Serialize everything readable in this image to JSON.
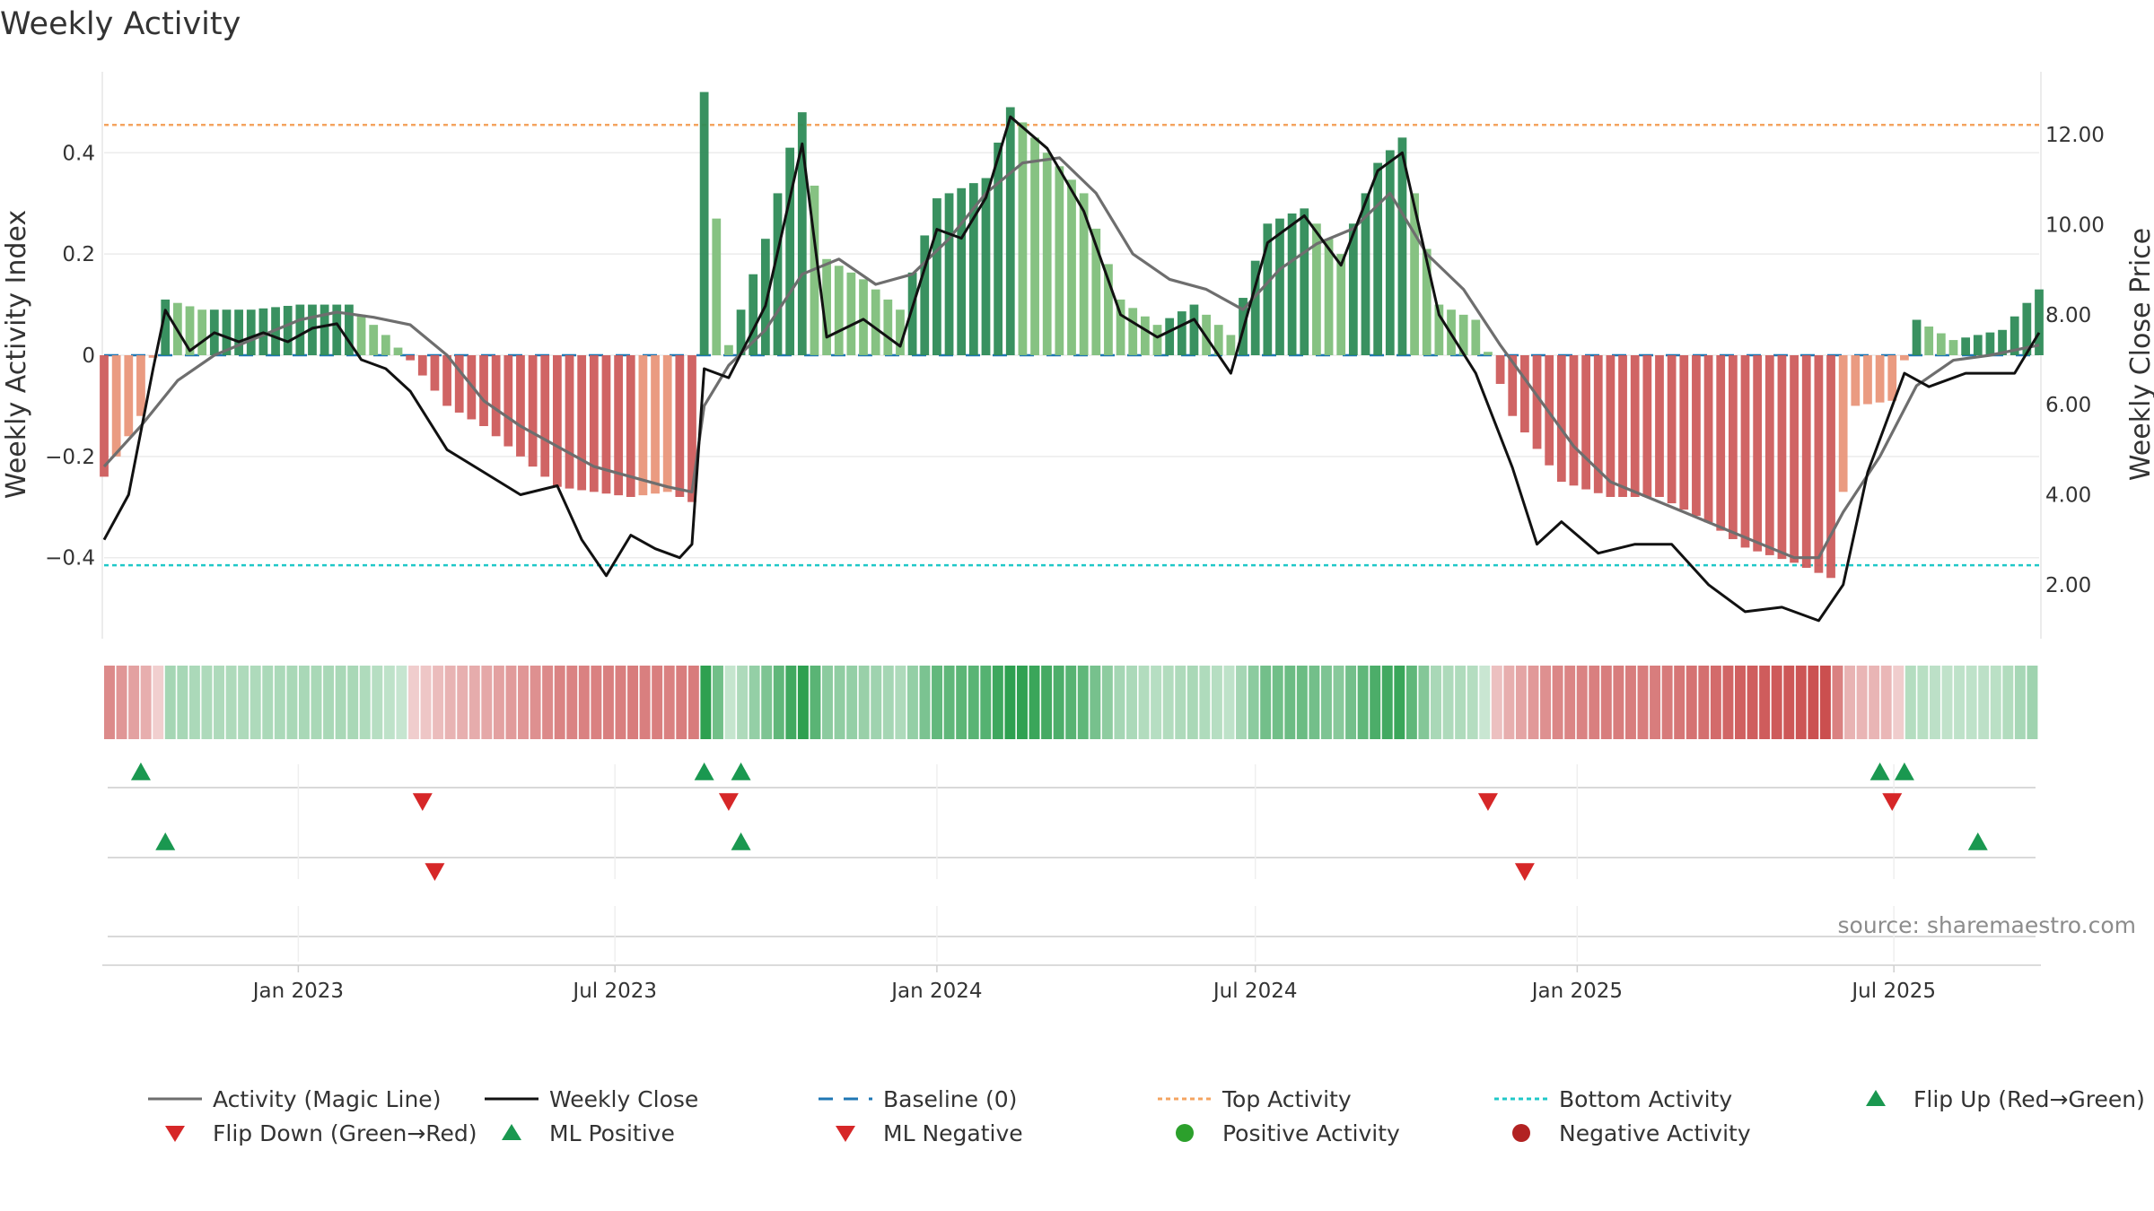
{
  "chart_data": {
    "type": "bar",
    "title": "Weekly Activity",
    "ylabel": "Weekly Activity Index",
    "y2label": "Weekly Close Price",
    "ylim": [
      -0.56,
      0.56
    ],
    "y2lim": [
      0.8,
      13.4
    ],
    "yticks": [
      0.4,
      0.2,
      0,
      -0.2,
      -0.4
    ],
    "ytick_labels": [
      "0.4",
      "0.2",
      "0",
      "−0.2",
      "−0.4"
    ],
    "y2ticks": [
      12,
      10,
      8,
      6,
      4,
      2
    ],
    "y2tick_labels": [
      "12.00",
      "10.00",
      "8.00",
      "6.00",
      "4.00",
      "2.00"
    ],
    "x_start": "2022-09-12",
    "x_end": "2025-09-22",
    "xticks": [
      "2023-01-01",
      "2023-07-01",
      "2024-01-01",
      "2024-07-01",
      "2025-01-01",
      "2025-07-01"
    ],
    "xtick_labels": [
      "Jan 2023",
      "Jul 2023",
      "Jan 2024",
      "Jul 2024",
      "Jan 2025",
      "Jul 2025"
    ],
    "top_activity": 0.455,
    "bottom_activity": -0.415,
    "source": "source: sharemaestro.com",
    "colors": {
      "positive_strong": "#2e8b57",
      "positive_light": "#7fbf7b",
      "negative_strong": "#cd5c5c",
      "negative_light": "#e9967a",
      "magic_line": "#6e6e6e",
      "close": "#111111",
      "baseline": "#1f77b4",
      "top": "#f4a460",
      "bottom": "#20c8c8",
      "flip_up": "#1a9850",
      "flip_down": "#d62728"
    },
    "series": [
      {
        "name": "Activity (Magic Line)",
        "type": "line",
        "axis": "left",
        "points": [
          [
            "2022-09-12",
            -0.22
          ],
          [
            "2022-10-03",
            -0.14
          ],
          [
            "2022-10-24",
            -0.05
          ],
          [
            "2022-11-14",
            0.0
          ],
          [
            "2022-12-05",
            0.03
          ],
          [
            "2023-01-02",
            0.07
          ],
          [
            "2023-01-23",
            0.085
          ],
          [
            "2023-02-13",
            0.075
          ],
          [
            "2023-03-06",
            0.06
          ],
          [
            "2023-03-27",
            0.0
          ],
          [
            "2023-04-17",
            -0.09
          ],
          [
            "2023-05-08",
            -0.14
          ],
          [
            "2023-05-29",
            -0.18
          ],
          [
            "2023-06-19",
            -0.22
          ],
          [
            "2023-07-10",
            -0.24
          ],
          [
            "2023-07-31",
            -0.26
          ],
          [
            "2023-08-14",
            -0.27
          ],
          [
            "2023-08-21",
            -0.1
          ],
          [
            "2023-09-04",
            -0.02
          ],
          [
            "2023-09-25",
            0.05
          ],
          [
            "2023-10-16",
            0.16
          ],
          [
            "2023-11-06",
            0.19
          ],
          [
            "2023-11-27",
            0.14
          ],
          [
            "2023-12-18",
            0.16
          ],
          [
            "2024-01-08",
            0.23
          ],
          [
            "2024-01-29",
            0.32
          ],
          [
            "2024-02-19",
            0.38
          ],
          [
            "2024-03-11",
            0.39
          ],
          [
            "2024-04-01",
            0.32
          ],
          [
            "2024-04-22",
            0.2
          ],
          [
            "2024-05-13",
            0.15
          ],
          [
            "2024-06-03",
            0.13
          ],
          [
            "2024-06-24",
            0.09
          ],
          [
            "2024-07-15",
            0.17
          ],
          [
            "2024-08-05",
            0.22
          ],
          [
            "2024-08-26",
            0.25
          ],
          [
            "2024-09-16",
            0.32
          ],
          [
            "2024-10-07",
            0.2
          ],
          [
            "2024-10-28",
            0.13
          ],
          [
            "2024-11-18",
            0.02
          ],
          [
            "2024-12-09",
            -0.08
          ],
          [
            "2024-12-30",
            -0.18
          ],
          [
            "2025-01-20",
            -0.25
          ],
          [
            "2025-02-10",
            -0.28
          ],
          [
            "2025-03-03",
            -0.31
          ],
          [
            "2025-03-24",
            -0.34
          ],
          [
            "2025-04-14",
            -0.37
          ],
          [
            "2025-05-05",
            -0.4
          ],
          [
            "2025-05-19",
            -0.4
          ],
          [
            "2025-06-02",
            -0.31
          ],
          [
            "2025-06-23",
            -0.2
          ],
          [
            "2025-07-14",
            -0.06
          ],
          [
            "2025-08-04",
            -0.01
          ],
          [
            "2025-08-25",
            0.0
          ],
          [
            "2025-09-22",
            0.02
          ]
        ]
      },
      {
        "name": "Weekly Close",
        "type": "line",
        "axis": "right",
        "points": [
          [
            "2022-09-12",
            3.0
          ],
          [
            "2022-09-26",
            4.0
          ],
          [
            "2022-10-10",
            6.8
          ],
          [
            "2022-10-17",
            8.1
          ],
          [
            "2022-10-31",
            7.2
          ],
          [
            "2022-11-14",
            7.6
          ],
          [
            "2022-11-28",
            7.4
          ],
          [
            "2022-12-12",
            7.6
          ],
          [
            "2022-12-26",
            7.4
          ],
          [
            "2023-01-09",
            7.7
          ],
          [
            "2023-01-23",
            7.8
          ],
          [
            "2023-02-06",
            7.0
          ],
          [
            "2023-02-20",
            6.8
          ],
          [
            "2023-03-06",
            6.3
          ],
          [
            "2023-03-27",
            5.0
          ],
          [
            "2023-04-17",
            4.5
          ],
          [
            "2023-05-08",
            4.0
          ],
          [
            "2023-05-29",
            4.2
          ],
          [
            "2023-06-12",
            3.0
          ],
          [
            "2023-06-26",
            2.2
          ],
          [
            "2023-07-10",
            3.1
          ],
          [
            "2023-07-24",
            2.8
          ],
          [
            "2023-08-07",
            2.6
          ],
          [
            "2023-08-14",
            2.9
          ],
          [
            "2023-08-21",
            6.8
          ],
          [
            "2023-09-04",
            6.6
          ],
          [
            "2023-09-25",
            8.2
          ],
          [
            "2023-10-16",
            11.8
          ],
          [
            "2023-10-30",
            7.5
          ],
          [
            "2023-11-20",
            7.9
          ],
          [
            "2023-12-11",
            7.3
          ],
          [
            "2024-01-01",
            9.9
          ],
          [
            "2024-01-15",
            9.7
          ],
          [
            "2024-01-29",
            10.6
          ],
          [
            "2024-02-12",
            12.4
          ],
          [
            "2024-03-04",
            11.7
          ],
          [
            "2024-03-25",
            10.3
          ],
          [
            "2024-04-15",
            8.0
          ],
          [
            "2024-05-06",
            7.5
          ],
          [
            "2024-05-27",
            7.9
          ],
          [
            "2024-06-17",
            6.7
          ],
          [
            "2024-07-08",
            9.6
          ],
          [
            "2024-07-29",
            10.2
          ],
          [
            "2024-08-19",
            9.1
          ],
          [
            "2024-09-09",
            11.2
          ],
          [
            "2024-09-23",
            11.6
          ],
          [
            "2024-10-14",
            8.0
          ],
          [
            "2024-11-04",
            6.7
          ],
          [
            "2024-11-25",
            4.6
          ],
          [
            "2024-12-09",
            2.9
          ],
          [
            "2024-12-23",
            3.4
          ],
          [
            "2025-01-13",
            2.7
          ],
          [
            "2025-02-03",
            2.9
          ],
          [
            "2025-02-24",
            2.9
          ],
          [
            "2025-03-17",
            2.0
          ],
          [
            "2025-04-07",
            1.4
          ],
          [
            "2025-04-28",
            1.5
          ],
          [
            "2025-05-19",
            1.2
          ],
          [
            "2025-06-02",
            2.0
          ],
          [
            "2025-06-16",
            4.5
          ],
          [
            "2025-07-07",
            6.7
          ],
          [
            "2025-07-21",
            6.4
          ],
          [
            "2025-08-11",
            6.7
          ],
          [
            "2025-09-08",
            6.7
          ],
          [
            "2025-09-22",
            7.6
          ]
        ]
      },
      {
        "name": "Weekly Activity",
        "type": "bar",
        "axis": "left",
        "points": [
          [
            "2022-09-12",
            -0.24
          ],
          [
            "2022-10-03",
            -0.12
          ],
          [
            "2022-10-17",
            0.11
          ],
          [
            "2022-11-07",
            0.09
          ],
          [
            "2022-12-05",
            0.09
          ],
          [
            "2023-01-02",
            0.1
          ],
          [
            "2023-01-30",
            0.1
          ],
          [
            "2023-02-20",
            0.04
          ],
          [
            "2023-03-06",
            -0.01
          ],
          [
            "2023-03-27",
            -0.1
          ],
          [
            "2023-04-17",
            -0.14
          ],
          [
            "2023-05-08",
            -0.2
          ],
          [
            "2023-05-29",
            -0.26
          ],
          [
            "2023-06-19",
            -0.27
          ],
          [
            "2023-07-10",
            -0.28
          ],
          [
            "2023-07-31",
            -0.27
          ],
          [
            "2023-08-14",
            -0.29
          ],
          [
            "2023-08-21",
            0.52
          ],
          [
            "2023-09-04",
            0.02
          ],
          [
            "2023-09-25",
            0.23
          ],
          [
            "2023-10-09",
            0.41
          ],
          [
            "2023-10-16",
            0.48
          ],
          [
            "2023-10-30",
            0.19
          ],
          [
            "2023-11-20",
            0.15
          ],
          [
            "2023-12-11",
            0.09
          ],
          [
            "2024-01-01",
            0.31
          ],
          [
            "2024-01-29",
            0.35
          ],
          [
            "2024-02-12",
            0.49
          ],
          [
            "2024-03-04",
            0.4
          ],
          [
            "2024-03-25",
            0.32
          ],
          [
            "2024-04-15",
            0.11
          ],
          [
            "2024-05-06",
            0.06
          ],
          [
            "2024-05-27",
            0.1
          ],
          [
            "2024-06-17",
            0.04
          ],
          [
            "2024-07-08",
            0.26
          ],
          [
            "2024-07-29",
            0.29
          ],
          [
            "2024-08-19",
            0.2
          ],
          [
            "2024-09-09",
            0.38
          ],
          [
            "2024-09-23",
            0.43
          ],
          [
            "2024-10-14",
            0.1
          ],
          [
            "2024-11-04",
            0.07
          ],
          [
            "2024-11-25",
            -0.12
          ],
          [
            "2024-12-23",
            -0.25
          ],
          [
            "2025-01-20",
            -0.28
          ],
          [
            "2025-02-17",
            -0.28
          ],
          [
            "2025-03-17",
            -0.33
          ],
          [
            "2025-04-07",
            -0.38
          ],
          [
            "2025-05-05",
            -0.41
          ],
          [
            "2025-05-26",
            -0.44
          ],
          [
            "2025-06-09",
            -0.1
          ],
          [
            "2025-06-30",
            -0.09
          ],
          [
            "2025-07-14",
            0.07
          ],
          [
            "2025-08-04",
            0.03
          ],
          [
            "2025-09-01",
            0.05
          ],
          [
            "2025-09-22",
            0.13
          ]
        ]
      }
    ],
    "flip_markers": {
      "flip_up": [
        "2022-10-03",
        "2023-08-21",
        "2023-09-11",
        "2025-06-23",
        "2025-07-07"
      ],
      "flip_down": [
        "2023-03-13",
        "2023-09-04",
        "2024-11-11",
        "2025-06-30"
      ]
    },
    "ml_markers": {
      "ml_positive": [
        "2022-10-17",
        "2023-09-11",
        "2025-08-18"
      ],
      "ml_negative": [
        "2023-03-20",
        "2024-12-02"
      ]
    }
  },
  "legend": [
    {
      "label": "Activity (Magic Line)",
      "icon": "solid-gray-line"
    },
    {
      "label": "Weekly Close",
      "icon": "solid-black-line"
    },
    {
      "label": "Baseline (0)",
      "icon": "dashed-blue-line"
    },
    {
      "label": "Top Activity",
      "icon": "dotted-orange-line"
    },
    {
      "label": "Bottom Activity",
      "icon": "dotted-cyan-line"
    },
    {
      "label": "Flip Up (Red→Green)",
      "icon": "green-triangle-up"
    },
    {
      "label": "Flip Down (Green→Red)",
      "icon": "red-triangle-down"
    },
    {
      "label": "ML Positive",
      "icon": "green-triangle-up"
    },
    {
      "label": "ML Negative",
      "icon": "red-triangle-down"
    },
    {
      "label": "Positive Activity",
      "icon": "green-circle"
    },
    {
      "label": "Negative Activity",
      "icon": "red-circle"
    }
  ]
}
